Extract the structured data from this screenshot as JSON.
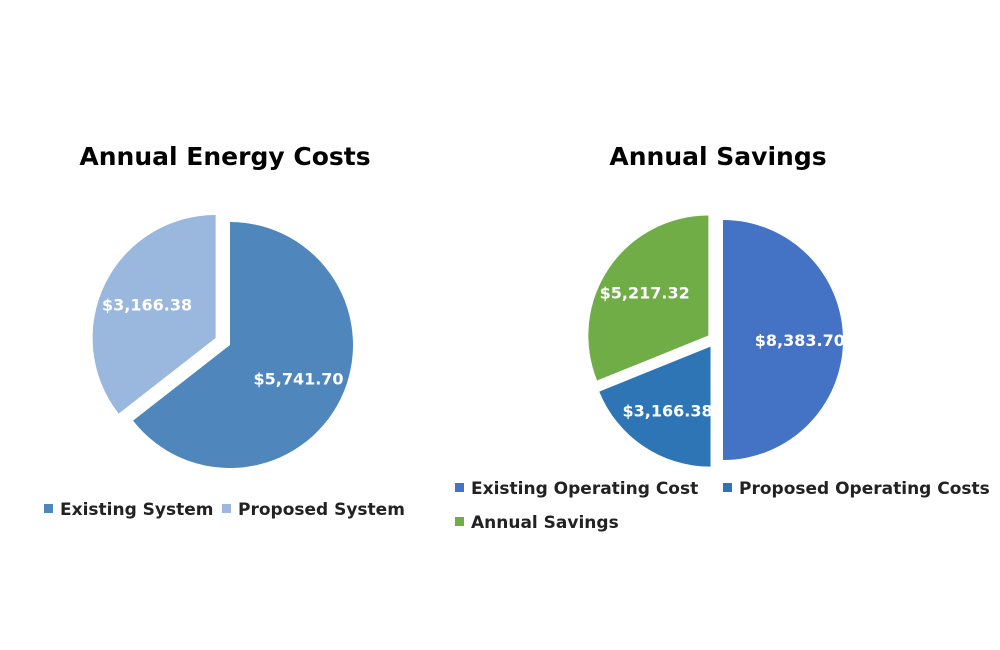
{
  "chart_data": [
    {
      "type": "pie",
      "title": "Annual Energy Costs",
      "slices": [
        {
          "name": "Existing System",
          "value": 5741.7,
          "label": "$5,741.70",
          "color": "#4f87bd",
          "exploded": false
        },
        {
          "name": "Proposed System",
          "value": 3166.38,
          "label": "$3,166.38",
          "color": "#9ab7de",
          "exploded": true
        }
      ],
      "legend_position": "bottom"
    },
    {
      "type": "pie",
      "title": "Annual Savings",
      "slices": [
        {
          "name": "Existing Operating Cost",
          "value": 8383.7,
          "label": "$8,383.70",
          "color": "#4472c4",
          "exploded": true
        },
        {
          "name": "Proposed Operating Costs",
          "value": 3166.38,
          "label": "$3,166.38",
          "color": "#2e75b6",
          "exploded": true
        },
        {
          "name": "Annual Savings",
          "value": 5217.32,
          "label": "$5,217.32",
          "color": "#70ad47",
          "exploded": true
        }
      ],
      "legend_position": "bottom"
    }
  ]
}
